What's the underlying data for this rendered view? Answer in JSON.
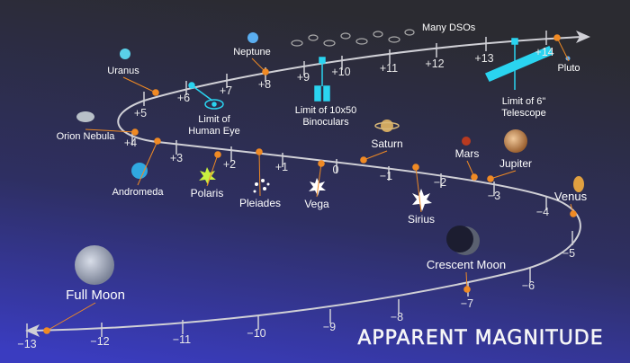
{
  "title": "APPARENT MAGNITUDE",
  "scale": {
    "ticks": [
      "+14",
      "+13",
      "+12",
      "+11",
      "+10",
      "+9",
      "+8",
      "+7",
      "+6",
      "+5",
      "+4",
      "+3",
      "+2",
      "+1",
      "0",
      "−1",
      "−2",
      "−3",
      "−4",
      "−5",
      "−6",
      "−7",
      "−8",
      "−9",
      "−10",
      "−11",
      "−12",
      "−13"
    ]
  },
  "objects": [
    {
      "label": [
        "Pluto"
      ]
    },
    {
      "label": [
        "Many DSOs"
      ]
    },
    {
      "label": [
        "Limit of 6\"",
        "Telescope"
      ]
    },
    {
      "label": [
        "Limit of 10x50",
        "Binoculars"
      ]
    },
    {
      "label": [
        "Neptune"
      ]
    },
    {
      "label": [
        "Uranus"
      ]
    },
    {
      "label": [
        "Limit of",
        "Human Eye"
      ]
    },
    {
      "label": [
        "Orion Nebula"
      ]
    },
    {
      "label": [
        "Andromeda"
      ]
    },
    {
      "label": [
        "Polaris"
      ]
    },
    {
      "label": [
        "Pleiades"
      ]
    },
    {
      "label": [
        "Vega"
      ]
    },
    {
      "label": [
        "Saturn"
      ]
    },
    {
      "label": [
        "Sirius"
      ]
    },
    {
      "label": [
        "Mars"
      ]
    },
    {
      "label": [
        "Jupiter"
      ]
    },
    {
      "label": [
        "Venus"
      ]
    },
    {
      "label": [
        "Crescent Moon"
      ]
    },
    {
      "label": [
        "Full Moon"
      ]
    }
  ]
}
